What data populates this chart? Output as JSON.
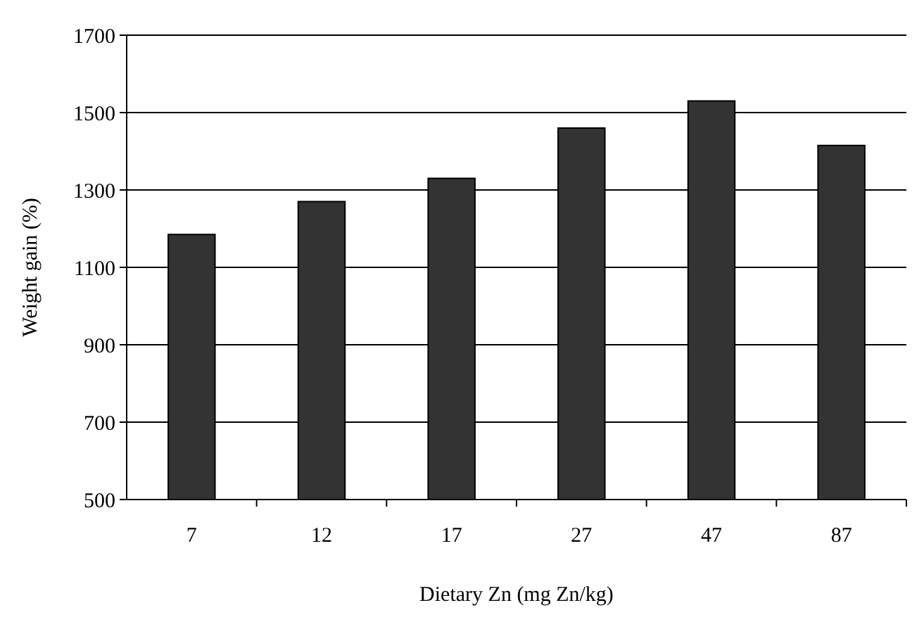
{
  "chart_data": {
    "type": "bar",
    "xlabel": "Dietary Zn (mg Zn/kg)",
    "ylabel": "Weight gain (%)",
    "categories": [
      "7",
      "12",
      "17",
      "27",
      "47",
      "87"
    ],
    "values": [
      1185,
      1270,
      1330,
      1460,
      1530,
      1415
    ],
    "color": "#333333",
    "ylim": [
      500,
      1700
    ],
    "yticks": [
      500,
      700,
      900,
      1100,
      1300,
      1500,
      1700
    ],
    "grid": "y"
  }
}
